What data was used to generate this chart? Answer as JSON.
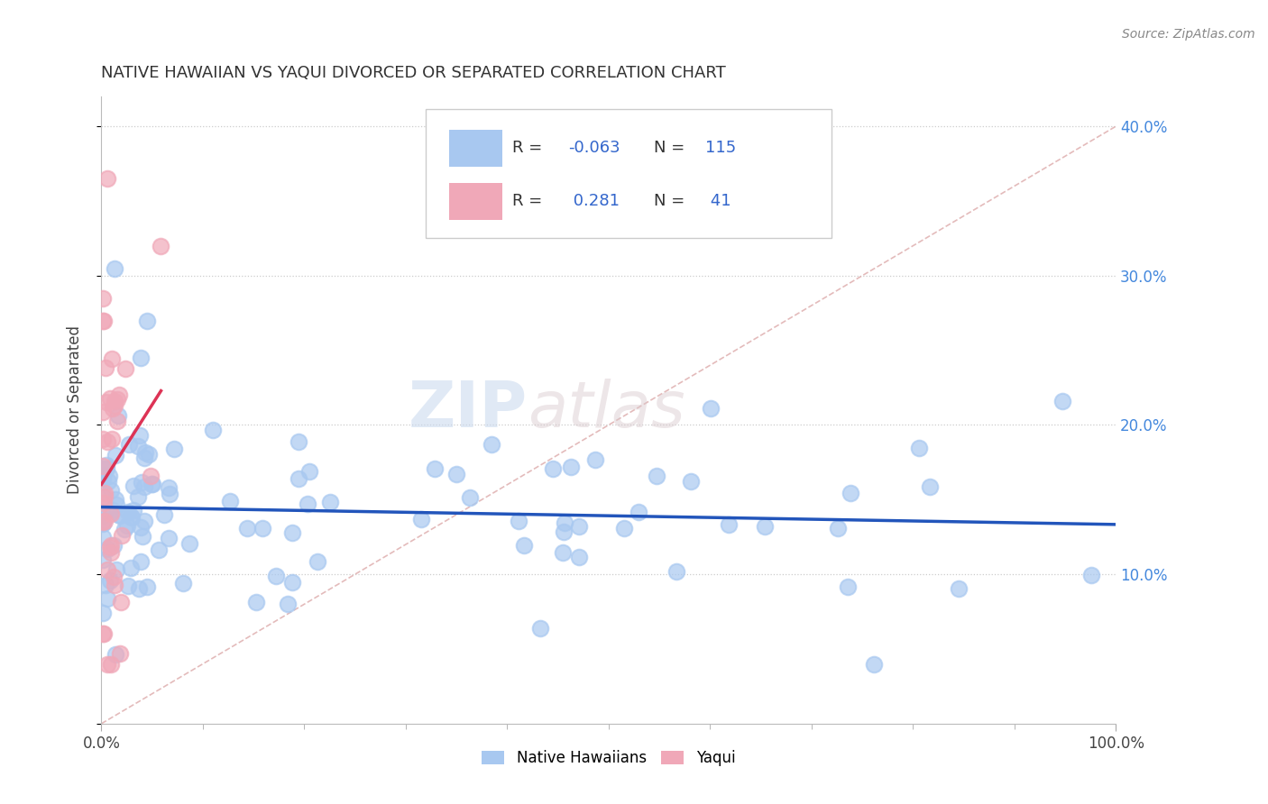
{
  "title": "NATIVE HAWAIIAN VS YAQUI DIVORCED OR SEPARATED CORRELATION CHART",
  "source_text": "Source: ZipAtlas.com",
  "ylabel": "Divorced or Separated",
  "legend_label_1": "Native Hawaiians",
  "legend_label_2": "Yaqui",
  "R1": -0.063,
  "N1": 115,
  "R2": 0.281,
  "N2": 41,
  "color_blue": "#a8c8f0",
  "color_pink": "#f0a8b8",
  "trend_color_blue": "#2255bb",
  "trend_color_pink": "#dd3355",
  "ref_line_color": "#ddaaaa",
  "xlim": [
    0.0,
    1.0
  ],
  "ylim": [
    0.0,
    0.42
  ],
  "y_ticks": [
    0.1,
    0.2,
    0.3,
    0.4
  ],
  "seed": 123
}
